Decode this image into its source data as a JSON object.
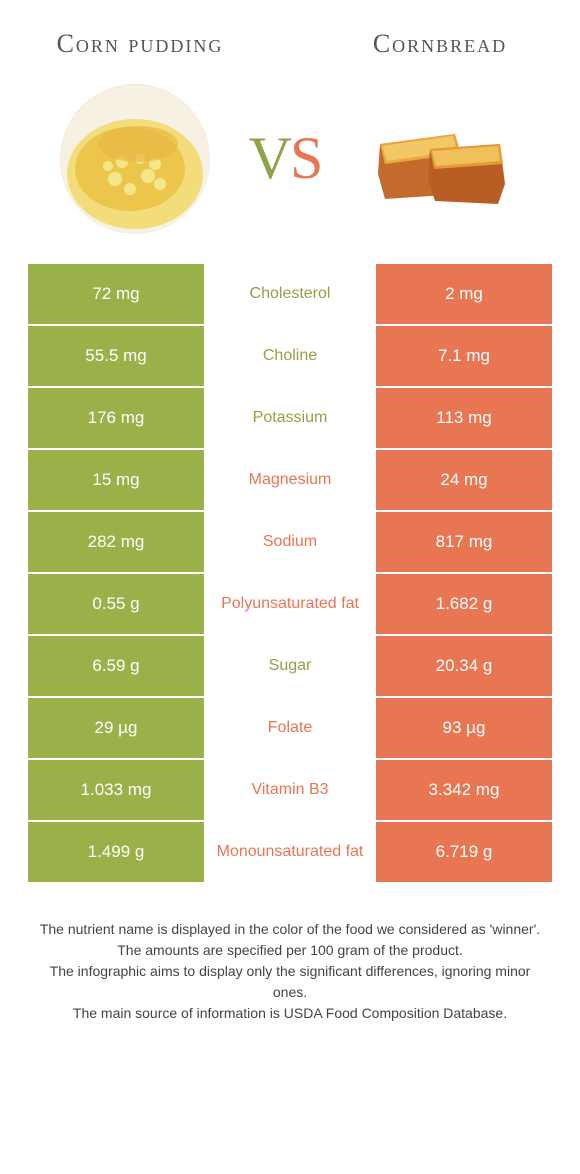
{
  "titles": {
    "left": "Corn pudding",
    "right": "Cornbread"
  },
  "vs": {
    "v": "V",
    "s": "S"
  },
  "colors": {
    "green_cell": "#99b148",
    "orange_cell": "#e87653",
    "green_text": "#8da548",
    "orange_text": "#e87653"
  },
  "rows": [
    {
      "left": "72 mg",
      "label": "Cholesterol",
      "right": "2 mg",
      "winner": "green"
    },
    {
      "left": "55.5 mg",
      "label": "Choline",
      "right": "7.1 mg",
      "winner": "green"
    },
    {
      "left": "176 mg",
      "label": "Potassium",
      "right": "113 mg",
      "winner": "green"
    },
    {
      "left": "15 mg",
      "label": "Magnesium",
      "right": "24 mg",
      "winner": "orange"
    },
    {
      "left": "282 mg",
      "label": "Sodium",
      "right": "817 mg",
      "winner": "orange"
    },
    {
      "left": "0.55 g",
      "label": "Polyunsaturated fat",
      "right": "1.682 g",
      "winner": "orange"
    },
    {
      "left": "6.59 g",
      "label": "Sugar",
      "right": "20.34 g",
      "winner": "green"
    },
    {
      "left": "29 µg",
      "label": "Folate",
      "right": "93 µg",
      "winner": "orange"
    },
    {
      "left": "1.033 mg",
      "label": "Vitamin B3",
      "right": "3.342 mg",
      "winner": "orange"
    },
    {
      "left": "1.499 g",
      "label": "Monounsaturated fat",
      "right": "6.719 g",
      "winner": "orange"
    }
  ],
  "footer": [
    "The nutrient name is displayed in the color of the food we considered as 'winner'.",
    "The amounts are specified per 100 gram of the product.",
    "The infographic aims to display only the significant differences, ignoring minor ones.",
    "The main source of information is USDA Food Composition Database."
  ]
}
